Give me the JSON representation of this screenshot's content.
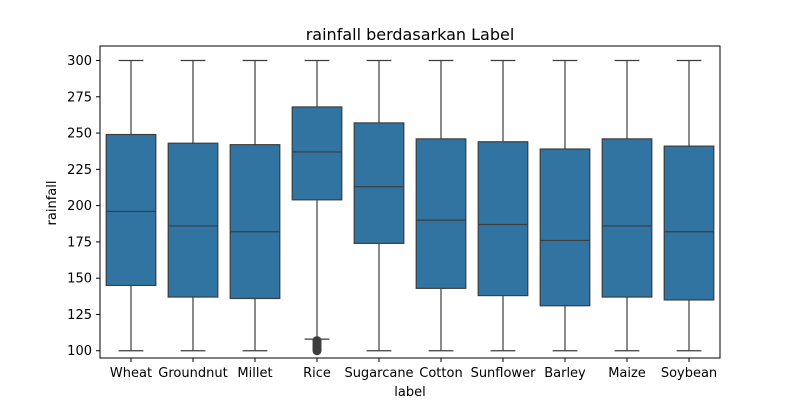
{
  "chart_data": {
    "type": "box",
    "title": "rainfall berdasarkan Label",
    "xlabel": "label",
    "ylabel": "rainfall",
    "ylim": [
      95,
      310
    ],
    "yticks": [
      100,
      125,
      150,
      175,
      200,
      225,
      250,
      275,
      300
    ],
    "grid": false,
    "legend": "none",
    "box_color": "#3274a1",
    "line_color": "#3d3d3d",
    "categories": [
      "Wheat",
      "Groundnut",
      "Millet",
      "Rice",
      "Sugarcane",
      "Cotton",
      "Sunflower",
      "Barley",
      "Maize",
      "Soybean"
    ],
    "boxes": [
      {
        "whisker_low": 100,
        "q1": 145,
        "median": 196,
        "q3": 249,
        "whisker_high": 300,
        "outliers": []
      },
      {
        "whisker_low": 100,
        "q1": 137,
        "median": 186,
        "q3": 243,
        "whisker_high": 300,
        "outliers": []
      },
      {
        "whisker_low": 100,
        "q1": 136,
        "median": 182,
        "q3": 242,
        "whisker_high": 300,
        "outliers": []
      },
      {
        "whisker_low": 108,
        "q1": 204,
        "median": 237,
        "q3": 268,
        "whisker_high": 300,
        "outliers": [
          107,
          106,
          105,
          104,
          103,
          102,
          101,
          100
        ]
      },
      {
        "whisker_low": 100,
        "q1": 174,
        "median": 213,
        "q3": 257,
        "whisker_high": 300,
        "outliers": []
      },
      {
        "whisker_low": 100,
        "q1": 143,
        "median": 190,
        "q3": 246,
        "whisker_high": 300,
        "outliers": []
      },
      {
        "whisker_low": 100,
        "q1": 138,
        "median": 187,
        "q3": 244,
        "whisker_high": 300,
        "outliers": []
      },
      {
        "whisker_low": 100,
        "q1": 131,
        "median": 176,
        "q3": 239,
        "whisker_high": 300,
        "outliers": []
      },
      {
        "whisker_low": 100,
        "q1": 137,
        "median": 186,
        "q3": 246,
        "whisker_high": 300,
        "outliers": []
      },
      {
        "whisker_low": 100,
        "q1": 135,
        "median": 182,
        "q3": 241,
        "whisker_high": 300,
        "outliers": []
      }
    ]
  }
}
